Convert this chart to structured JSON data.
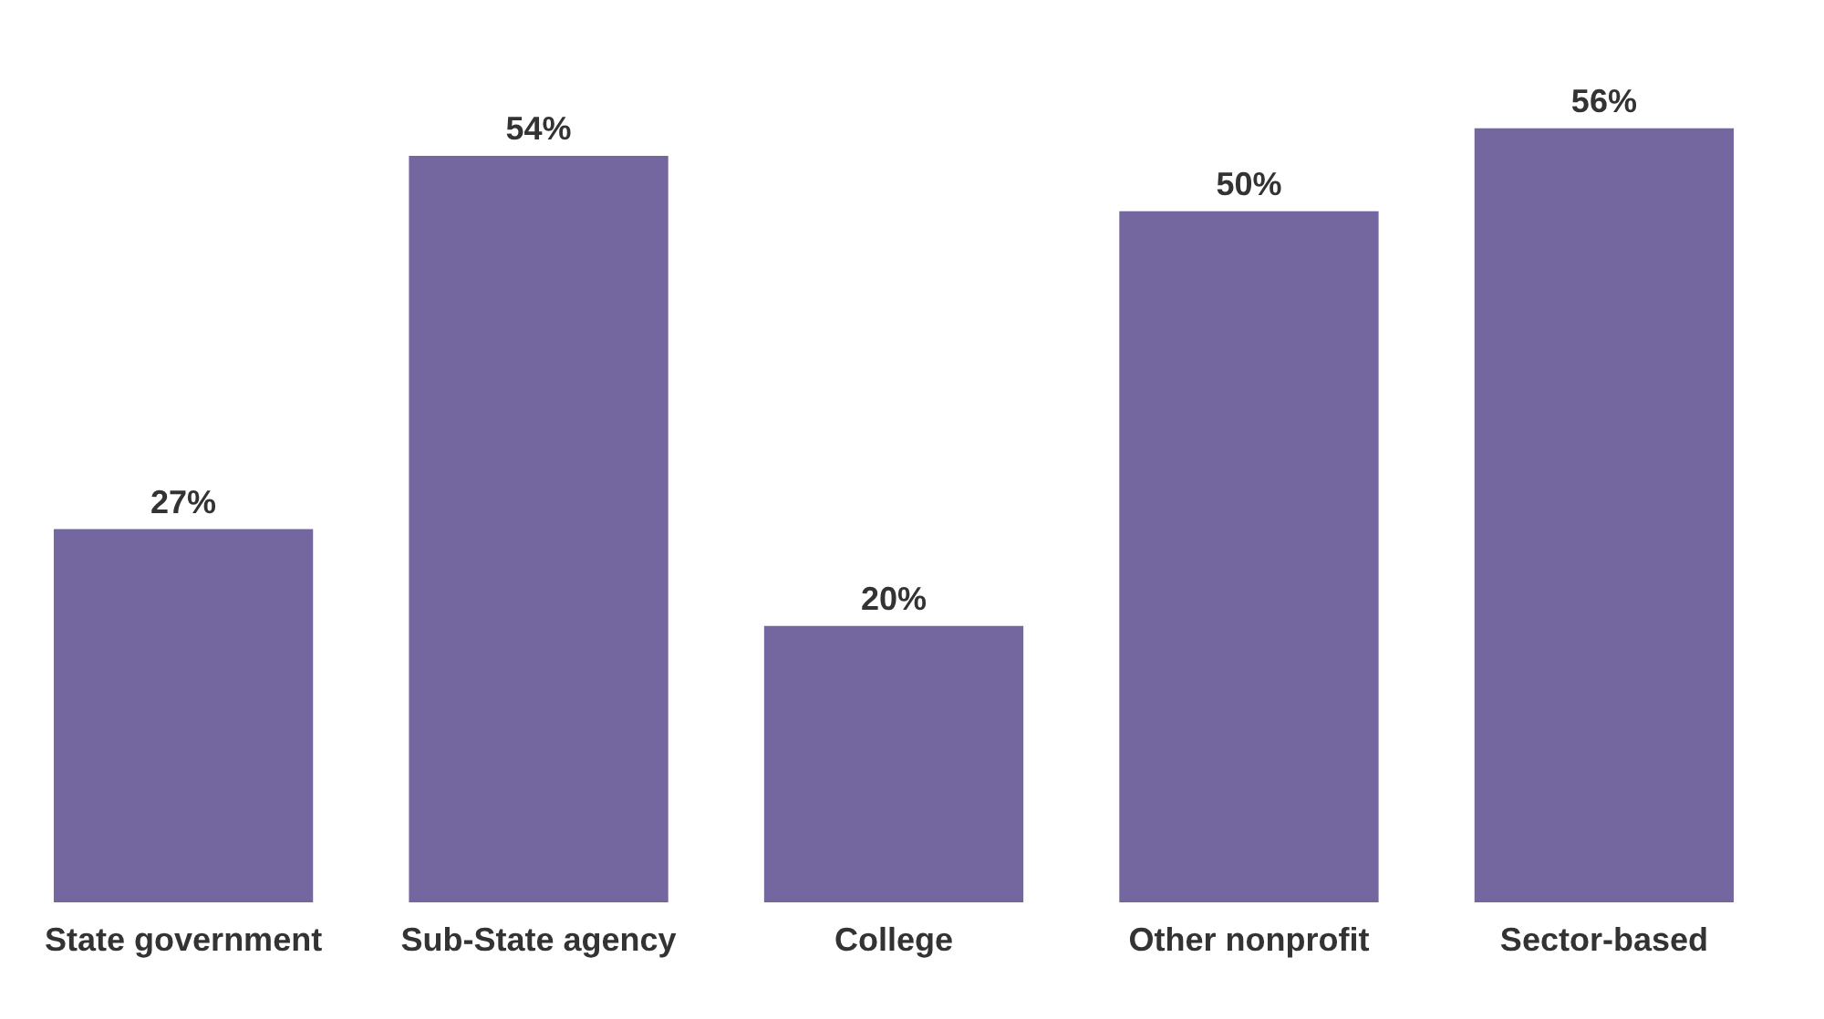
{
  "chart_data": {
    "type": "bar",
    "categories": [
      "State government",
      "Sub-State agency",
      "College",
      "Other nonprofit",
      "Sector-based"
    ],
    "values": [
      27,
      54,
      20,
      50,
      56
    ],
    "value_labels": [
      "27%",
      "54%",
      "20%",
      "50%",
      "56%"
    ],
    "color": "#74669e",
    "grid": false
  }
}
